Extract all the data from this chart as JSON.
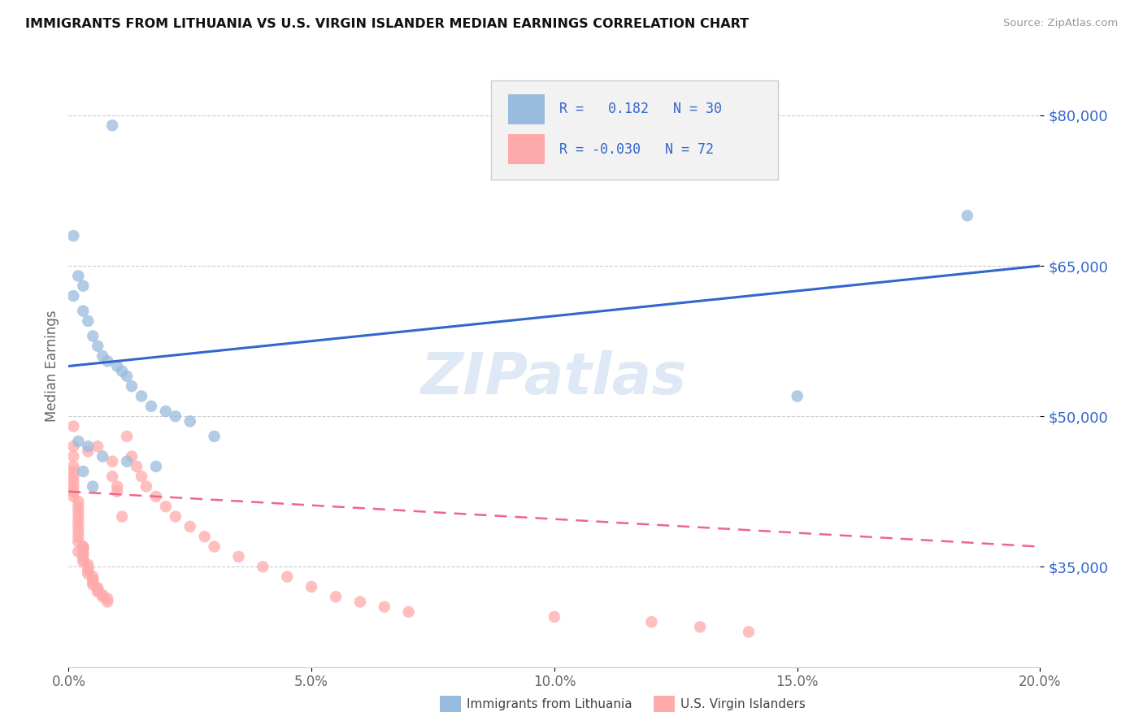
{
  "title": "IMMIGRANTS FROM LITHUANIA VS U.S. VIRGIN ISLANDER MEDIAN EARNINGS CORRELATION CHART",
  "source": "Source: ZipAtlas.com",
  "ylabel_label": "Median Earnings",
  "x_min": 0.0,
  "x_max": 0.2,
  "y_min": 25000,
  "y_max": 85000,
  "y_ticks": [
    35000,
    50000,
    65000,
    80000
  ],
  "y_tick_labels": [
    "$35,000",
    "$50,000",
    "$65,000",
    "$80,000"
  ],
  "x_ticks": [
    0.0,
    0.05,
    0.1,
    0.15,
    0.2
  ],
  "x_tick_labels": [
    "0.0%",
    "5.0%",
    "10.0%",
    "15.0%",
    "20.0%"
  ],
  "blue_color": "#99BBDD",
  "pink_color": "#FFAAAA",
  "trendline_blue": "#3366CC",
  "trendline_pink": "#EE6688",
  "watermark_text": "ZIPatlas",
  "blue_R": 0.182,
  "blue_N": 30,
  "pink_R": -0.03,
  "pink_N": 72,
  "blue_trend_y0": 55000,
  "blue_trend_y1": 65000,
  "pink_trend_y0": 42500,
  "pink_trend_y1": 37000,
  "blue_scatter_x": [
    0.009,
    0.001,
    0.002,
    0.003,
    0.001,
    0.003,
    0.004,
    0.005,
    0.006,
    0.007,
    0.008,
    0.01,
    0.011,
    0.012,
    0.013,
    0.015,
    0.017,
    0.02,
    0.022,
    0.025,
    0.03,
    0.002,
    0.004,
    0.007,
    0.012,
    0.018,
    0.003,
    0.005,
    0.15,
    0.185
  ],
  "blue_scatter_y": [
    79000,
    68000,
    64000,
    63000,
    62000,
    60500,
    59500,
    58000,
    57000,
    56000,
    55500,
    55000,
    54500,
    54000,
    53000,
    52000,
    51000,
    50500,
    50000,
    49500,
    48000,
    47500,
    47000,
    46000,
    45500,
    45000,
    44500,
    43000,
    52000,
    70000
  ],
  "pink_scatter_x": [
    0.001,
    0.001,
    0.001,
    0.001,
    0.001,
    0.001,
    0.001,
    0.001,
    0.001,
    0.001,
    0.002,
    0.002,
    0.002,
    0.002,
    0.002,
    0.002,
    0.002,
    0.002,
    0.002,
    0.003,
    0.003,
    0.003,
    0.003,
    0.003,
    0.003,
    0.004,
    0.004,
    0.004,
    0.004,
    0.005,
    0.005,
    0.005,
    0.005,
    0.006,
    0.006,
    0.006,
    0.007,
    0.007,
    0.008,
    0.008,
    0.009,
    0.009,
    0.01,
    0.01,
    0.011,
    0.012,
    0.013,
    0.014,
    0.015,
    0.016,
    0.018,
    0.02,
    0.022,
    0.025,
    0.028,
    0.03,
    0.035,
    0.04,
    0.045,
    0.05,
    0.055,
    0.06,
    0.065,
    0.07,
    0.1,
    0.12,
    0.13,
    0.14,
    0.002,
    0.004,
    0.003,
    0.006
  ],
  "pink_scatter_y": [
    49000,
    47000,
    46000,
    45000,
    44500,
    44000,
    43500,
    43000,
    42500,
    42000,
    41500,
    41000,
    40500,
    40000,
    39500,
    39000,
    38500,
    38000,
    37500,
    37000,
    36800,
    36500,
    36200,
    35800,
    35500,
    35200,
    34900,
    34600,
    34300,
    34000,
    33700,
    33500,
    33200,
    32900,
    32700,
    32500,
    32200,
    32000,
    31800,
    31500,
    45500,
    44000,
    43000,
    42500,
    40000,
    48000,
    46000,
    45000,
    44000,
    43000,
    42000,
    41000,
    40000,
    39000,
    38000,
    37000,
    36000,
    35000,
    34000,
    33000,
    32000,
    31500,
    31000,
    30500,
    30000,
    29500,
    29000,
    28500,
    36500,
    46500,
    37000,
    47000
  ]
}
